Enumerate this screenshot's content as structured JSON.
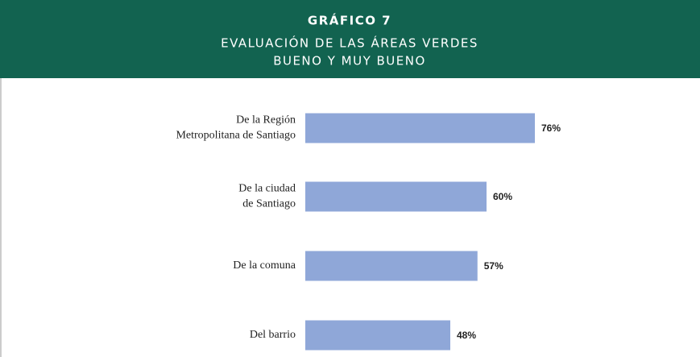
{
  "chart_data": {
    "type": "bar",
    "orientation": "horizontal",
    "title": [
      "GRÁFICO 7",
      "EVALUACIÓN DE LAS ÁREAS VERDES",
      "BUENO Y MUY BUENO"
    ],
    "categories": [
      [
        "De la Región",
        "Metropolitana de Santiago"
      ],
      [
        "De la ciudad",
        "de Santiago"
      ],
      [
        "De la comuna"
      ],
      [
        "Del barrio"
      ]
    ],
    "values": [
      76,
      60,
      57,
      48
    ],
    "value_labels": [
      "76%",
      "60%",
      "57%",
      "48%"
    ],
    "color": "#8fa7d8"
  }
}
